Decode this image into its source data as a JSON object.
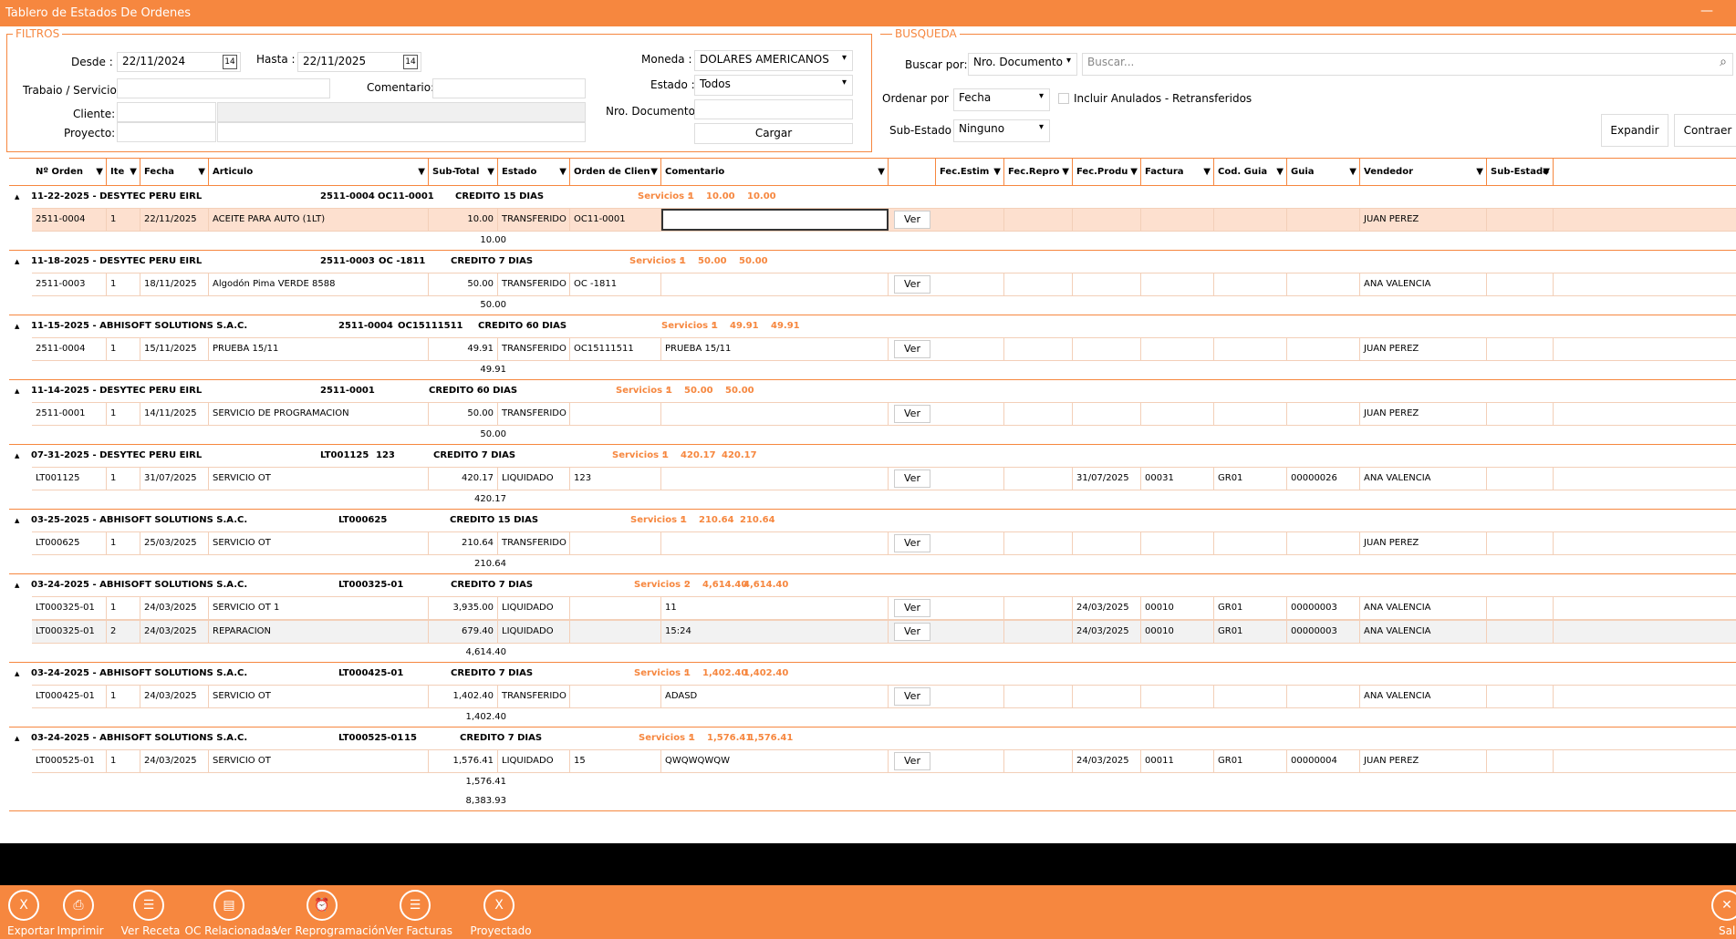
{
  "window": {
    "title": "Tablero de Estados De Ordenes",
    "minimize": "—"
  },
  "filtros": {
    "legend": "FILTROS",
    "desde_label": "Desde :",
    "desde": "22/11/2024",
    "hasta_label": "Hasta :",
    "hasta": "22/11/2025",
    "moneda_label": "Moneda :",
    "moneda": "DOLARES AMERICANOS",
    "trabajo_label": "Trabaio / Servicio:",
    "trabajo": "",
    "comentario_label": "Comentario:",
    "comentario": "",
    "estado_label": "Estado :",
    "estado": "Todos",
    "cliente_label": "Cliente:",
    "cliente": "",
    "cliente_nombre": "",
    "nro_doc_label": "Nro. Documento:",
    "nro_doc": "",
    "proyecto_label": "Proyecto:",
    "proyecto": "",
    "proyecto_nombre": "",
    "cargar": "Cargar",
    "calendar_icon": "14"
  },
  "busqueda": {
    "legend": "BUSQUEDA",
    "buscar_por_label": "Buscar por:",
    "buscar_por": "Nro. Documento",
    "search_placeholder": "Buscar...",
    "ordenar_label": "Ordenar por  :",
    "ordenar": "Fecha",
    "incluir": "Incluir Anulados - Retransferidos",
    "subestado_label": "Sub-Estado :",
    "subestado": "Ninguno",
    "expandir": "Expandir",
    "contraer": "Contraer"
  },
  "columns": [
    {
      "label": "Nº Orden",
      "filter": true
    },
    {
      "label": "Ite",
      "filter": true
    },
    {
      "label": "Fecha",
      "filter": true
    },
    {
      "label": "Articulo",
      "filter": true
    },
    {
      "label": "Sub-Total",
      "filter": true
    },
    {
      "label": "Estado",
      "filter": true
    },
    {
      "label": "Orden de Clien",
      "filter": true
    },
    {
      "label": "Comentario",
      "filter": true
    },
    {
      "label": "",
      "filter": false
    },
    {
      "label": "Fec.Estim",
      "filter": true
    },
    {
      "label": "Fec.Repro",
      "filter": true
    },
    {
      "label": "Fec.Produ",
      "filter": true
    },
    {
      "label": "Factura",
      "filter": true
    },
    {
      "label": "Cod. Guia",
      "filter": true
    },
    {
      "label": "Guia",
      "filter": true
    },
    {
      "label": "Vendedor",
      "filter": true
    },
    {
      "label": "Sub-Estado",
      "filter": true
    }
  ],
  "ver_label": "Ver",
  "servicios_label": "Servicios :",
  "groups": [
    {
      "header": "11-22-2025 - DESYTEC PERU EIRL",
      "doc": "2511-0004",
      "oc": "OC11-0001",
      "credito": "CREDITO 15 DIAS",
      "count": "1",
      "v1": "10.00",
      "v2": "10.00",
      "subtotal": "10.00",
      "rows": [
        [
          "2511-0004",
          "1",
          "22/11/2025",
          "ACEITE PARA AUTO (1LT)",
          "10.00",
          "TRANSFERIDO",
          "OC11-0001",
          "",
          "",
          "",
          "",
          "",
          "",
          "",
          "JUAN PEREZ",
          ""
        ]
      ]
    },
    {
      "header": "11-18-2025 - DESYTEC PERU EIRL",
      "doc": "2511-0003",
      "oc": "OC -1811",
      "credito": "CREDITO 7 DIAS",
      "count": "1",
      "v1": "50.00",
      "v2": "50.00",
      "subtotal": "50.00",
      "rows": [
        [
          "2511-0003",
          "1",
          "18/11/2025",
          "Algodón Pima VERDE 8588",
          "50.00",
          "TRANSFERIDO",
          "OC -1811",
          "",
          "",
          "",
          "",
          "",
          "",
          "",
          "ANA VALENCIA",
          ""
        ]
      ]
    },
    {
      "header": "11-15-2025 - ABHISOFT SOLUTIONS S.A.C.",
      "doc": "2511-0004",
      "oc": "OC15111511",
      "credito": "CREDITO 60 DIAS",
      "count": "1",
      "v1": "49.91",
      "v2": "49.91",
      "subtotal": "49.91",
      "rows": [
        [
          "2511-0004",
          "1",
          "15/11/2025",
          "PRUEBA 15/11",
          "49.91",
          "TRANSFERIDO",
          "OC15111511",
          "PRUEBA 15/11",
          "",
          "",
          "",
          "",
          "",
          "",
          "JUAN PEREZ",
          ""
        ]
      ]
    },
    {
      "header": "11-14-2025 - DESYTEC PERU EIRL",
      "doc": "2511-0001",
      "oc": "",
      "credito": "CREDITO 60 DIAS",
      "count": "1",
      "v1": "50.00",
      "v2": "50.00",
      "subtotal": "50.00",
      "rows": [
        [
          "2511-0001",
          "1",
          "14/11/2025",
          "SERVICIO DE PROGRAMACION",
          "50.00",
          "TRANSFERIDO",
          "",
          "",
          "",
          "",
          "",
          "",
          "",
          "",
          "JUAN PEREZ",
          ""
        ]
      ]
    },
    {
      "header": "07-31-2025 - DESYTEC PERU EIRL",
      "doc": "LT001125",
      "oc": "123",
      "credito": "CREDITO 7 DIAS",
      "count": "1",
      "v1": "420.17",
      "v2": "420.17",
      "subtotal": "420.17",
      "rows": [
        [
          "LT001125",
          "1",
          "31/07/2025",
          "SERVICIO OT",
          "420.17",
          "LIQUIDADO",
          "123",
          "",
          "",
          "",
          "31/07/2025",
          "00031",
          "GR01",
          "00000026",
          "ANA VALENCIA",
          ""
        ]
      ]
    },
    {
      "header": "03-25-2025 - ABHISOFT SOLUTIONS S.A.C.",
      "doc": "LT000625",
      "oc": "",
      "credito": "CREDITO 15 DIAS",
      "count": "1",
      "v1": "210.64",
      "v2": "210.64",
      "subtotal": "210.64",
      "rows": [
        [
          "LT000625",
          "1",
          "25/03/2025",
          "SERVICIO OT",
          "210.64",
          "TRANSFERIDO",
          "",
          "",
          "",
          "",
          "",
          "",
          "",
          "",
          "JUAN PEREZ",
          ""
        ]
      ]
    },
    {
      "header": "03-24-2025 - ABHISOFT SOLUTIONS S.A.C.",
      "doc": "LT000325-01",
      "oc": "",
      "credito": "CREDITO 7 DIAS",
      "count": "2",
      "v1": "4,614.40",
      "v2": "4,614.40",
      "subtotal": "4,614.40",
      "rows": [
        [
          "LT000325-01",
          "1",
          "24/03/2025",
          "SERVICIO OT 1",
          "3,935.00",
          "LIQUIDADO",
          "",
          "11",
          "",
          "",
          "24/03/2025",
          "00010",
          "GR01",
          "00000003",
          "ANA VALENCIA",
          ""
        ],
        [
          "LT000325-01",
          "2",
          "24/03/2025",
          "REPARACION",
          "679.40",
          "LIQUIDADO",
          "",
          "15:24",
          "",
          "",
          "24/03/2025",
          "00010",
          "GR01",
          "00000003",
          "ANA VALENCIA",
          ""
        ]
      ]
    },
    {
      "header": "03-24-2025 - ABHISOFT SOLUTIONS S.A.C.",
      "doc": "LT000425-01",
      "oc": "",
      "credito": "CREDITO 7 DIAS",
      "count": "1",
      "v1": "1,402.40",
      "v2": "1,402.40",
      "subtotal": "1,402.40",
      "rows": [
        [
          "LT000425-01",
          "1",
          "24/03/2025",
          "SERVICIO OT",
          "1,402.40",
          "TRANSFERIDO",
          "",
          "ADASD",
          "",
          "",
          "",
          "",
          "",
          "",
          "ANA VALENCIA",
          ""
        ]
      ]
    },
    {
      "header": "03-24-2025 - ABHISOFT SOLUTIONS S.A.C.",
      "doc": "LT000525-01",
      "oc": "15",
      "credito": "CREDITO 7 DIAS",
      "count": "1",
      "v1": "1,576.41",
      "v2": "1,576.41",
      "subtotal": "1,576.41",
      "rows": [
        [
          "LT000525-01",
          "1",
          "24/03/2025",
          "SERVICIO OT",
          "1,576.41",
          "LIQUIDADO",
          "15",
          "QWQWQWQW",
          "",
          "",
          "24/03/2025",
          "00011",
          "GR01",
          "00000004",
          "JUAN PEREZ",
          ""
        ]
      ]
    }
  ],
  "grand_total": "8,383.93",
  "toolbar": [
    {
      "label": "Exportar",
      "icon": "excel-icon",
      "glyph": "X"
    },
    {
      "label": "Imprimir",
      "icon": "printer-icon",
      "glyph": "⎙"
    },
    {
      "label": "Ver Receta",
      "icon": "list-icon",
      "glyph": "☰"
    },
    {
      "label": "OC Relacionadas",
      "icon": "clipboard-icon",
      "glyph": "▤"
    },
    {
      "label": "Ver Reprogramación",
      "icon": "alarm-clock-icon",
      "glyph": "⏰"
    },
    {
      "label": "Ver Facturas",
      "icon": "list-icon",
      "glyph": "☰"
    },
    {
      "label": "Proyectado",
      "icon": "excel-icon",
      "glyph": "X"
    }
  ],
  "salir": {
    "label": "Salir",
    "glyph": "✕"
  }
}
